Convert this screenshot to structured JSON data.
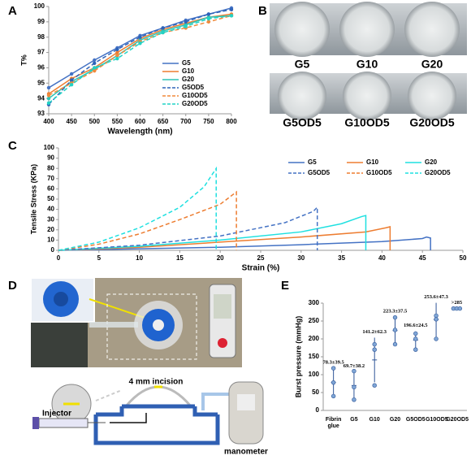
{
  "panels": [
    "A",
    "B",
    "C",
    "D",
    "E"
  ],
  "photo_labels": [
    "G5",
    "G10",
    "G20",
    "G5OD5",
    "G10OD5",
    "G20OD5"
  ],
  "diagram": {
    "labels": [
      "4 mm incision",
      "Injector",
      "manometer"
    ]
  },
  "chart_data": [
    {
      "type": "line",
      "xlabel": "Wavelength (nm)",
      "ylabel": "T%",
      "markers": true,
      "x": [
        400,
        450,
        500,
        550,
        600,
        650,
        700,
        750,
        800
      ],
      "xlim": [
        400,
        800
      ],
      "xticks": [
        400,
        450,
        500,
        550,
        600,
        650,
        700,
        750,
        800
      ],
      "ylim": [
        93,
        100
      ],
      "yticks": [
        93,
        94,
        95,
        96,
        97,
        98,
        99,
        100
      ],
      "series": [
        {
          "name": "G5",
          "color": "#4472c4",
          "dash": false,
          "values": [
            94.7,
            95.6,
            96.5,
            97.3,
            98.1,
            98.6,
            99.1,
            99.5,
            99.9
          ]
        },
        {
          "name": "G10",
          "color": "#ed7d31",
          "dash": false,
          "values": [
            94.3,
            95.3,
            96.0,
            97.0,
            97.9,
            98.5,
            98.9,
            99.3,
            99.5
          ]
        },
        {
          "name": "G20",
          "color": "#2ec4b6",
          "dash": false,
          "values": [
            94.0,
            95.1,
            95.9,
            96.8,
            97.8,
            98.4,
            98.8,
            99.3,
            99.4
          ]
        },
        {
          "name": "G5OD5",
          "color": "#2f63b8",
          "dash": true,
          "values": [
            93.6,
            95.2,
            96.3,
            97.2,
            98.0,
            98.6,
            99.0,
            99.5,
            99.8
          ]
        },
        {
          "name": "G10OD5",
          "color": "#f08a3c",
          "dash": true,
          "values": [
            94.2,
            95.0,
            95.8,
            96.8,
            97.7,
            98.3,
            98.6,
            99.0,
            99.4
          ]
        },
        {
          "name": "G20OD5",
          "color": "#22d3c5",
          "dash": true,
          "values": [
            93.7,
            94.9,
            96.0,
            96.6,
            97.6,
            98.3,
            98.7,
            99.2,
            99.4
          ]
        }
      ]
    },
    {
      "type": "line",
      "xlabel": "Strain (%)",
      "ylabel": "Tensile Stress (KPa)",
      "markers": false,
      "xlim": [
        0,
        50
      ],
      "xticks": [
        0,
        5,
        10,
        15,
        20,
        25,
        30,
        35,
        40,
        45,
        50
      ],
      "ylim": [
        0,
        100
      ],
      "yticks": [
        0,
        10,
        20,
        30,
        40,
        50,
        60,
        70,
        80,
        90,
        100
      ],
      "series": [
        {
          "name": "G5",
          "color": "#4472c4",
          "dash": false,
          "x": [
            0,
            10,
            20,
            30,
            40,
            45,
            45.5,
            46,
            46
          ],
          "values": [
            0,
            1.5,
            3,
            5.5,
            8.5,
            11.5,
            13,
            12,
            0
          ]
        },
        {
          "name": "G10",
          "color": "#ed7d31",
          "dash": false,
          "x": [
            0,
            10,
            20,
            30,
            38,
            40.5,
            41,
            41
          ],
          "values": [
            0,
            3,
            8,
            13,
            18,
            22,
            23,
            0
          ]
        },
        {
          "name": "G20",
          "color": "#1fe0e0",
          "dash": false,
          "x": [
            0,
            10,
            20,
            30,
            35,
            37.5,
            38,
            38
          ],
          "values": [
            0,
            4,
            10,
            18,
            26,
            33,
            34,
            0
          ]
        },
        {
          "name": "G5OD5",
          "color": "#4472c4",
          "dash": true,
          "x": [
            0,
            10,
            20,
            28,
            31.5,
            32,
            32
          ],
          "values": [
            0,
            5,
            14,
            27,
            38,
            42,
            0
          ]
        },
        {
          "name": "G10OD5",
          "color": "#ed7d31",
          "dash": true,
          "x": [
            0,
            5,
            10,
            15,
            20,
            21.5,
            22,
            22
          ],
          "values": [
            0,
            6,
            16,
            30,
            45,
            54,
            57,
            0
          ]
        },
        {
          "name": "G20OD5",
          "color": "#1fe0e0",
          "dash": true,
          "x": [
            0,
            5,
            10,
            15,
            18,
            19.5,
            19.5
          ],
          "values": [
            0,
            8,
            22,
            42,
            62,
            80,
            0
          ]
        }
      ]
    },
    {
      "type": "dot",
      "ylabel": "Burst pressure (mmHg)",
      "color": "#2f5597",
      "categories": [
        "Fibrin glue",
        "G5",
        "G10",
        "G20",
        "G5OD5",
        "G10OD5",
        "G20OD5"
      ],
      "ylim": [
        0,
        300
      ],
      "yticks": [
        0,
        50,
        100,
        150,
        200,
        250,
        300
      ],
      "values": [
        78.3,
        69.7,
        141.2,
        223.3,
        196.6,
        253.6,
        285
      ],
      "errors": [
        39.5,
        38.2,
        62.3,
        37.5,
        24.5,
        47.3,
        null
      ],
      "value_labels": [
        "78.3±39.5",
        "69.7±38.2",
        "141.2±62.3",
        "223.3±37.5",
        "196.6±24.5",
        "253.6±47.3",
        ">285"
      ],
      "points": [
        [
          40,
          78,
          118
        ],
        [
          30,
          65,
          110
        ],
        [
          70,
          170,
          185
        ],
        [
          185,
          225,
          260
        ],
        [
          170,
          200,
          215
        ],
        [
          200,
          255,
          265
        ],
        [
          285,
          285,
          285
        ]
      ]
    }
  ]
}
